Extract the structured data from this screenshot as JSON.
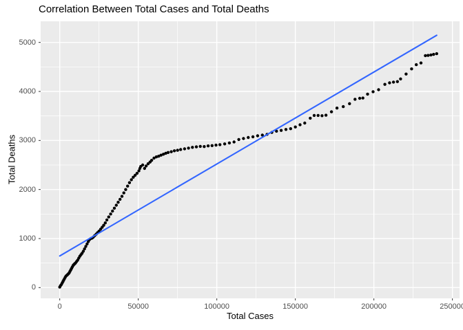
{
  "chart_data": {
    "type": "scatter",
    "title": "Correlation Between Total Cases and Total Deaths",
    "xlabel": "Total Cases",
    "ylabel": "Total Deaths",
    "xlim": [
      -12150,
      254550
    ],
    "ylim": [
      -220,
      5430
    ],
    "grid": true,
    "legend": "none",
    "x_tick_values": [
      0,
      50000,
      100000,
      150000,
      200000,
      250000
    ],
    "x_tick_labels": [
      "0",
      "50000",
      "100000",
      "150000",
      "200000",
      "250000"
    ],
    "y_tick_values": [
      0,
      1000,
      2000,
      3000,
      4000,
      5000
    ],
    "y_tick_labels": [
      "0",
      "1000",
      "2000",
      "3000",
      "4000",
      "5000"
    ],
    "x_minor_values": [
      25000,
      75000,
      125000,
      175000,
      225000
    ],
    "y_minor_values": [
      500,
      1500,
      2500,
      3500,
      4500
    ],
    "colors": {
      "panel_bg": "#EBEBEB",
      "grid": "#FFFFFF",
      "point": "#000000",
      "trend": "#3366FF",
      "tick_mark": "#333333",
      "tick_text": "#4D4D4D",
      "title_text": "#000000"
    },
    "trend_line": {
      "x": [
        0,
        240000
      ],
      "y": [
        645,
        5145
      ]
    },
    "points": [
      [
        0,
        10
      ],
      [
        500,
        40
      ],
      [
        1000,
        60
      ],
      [
        1500,
        90
      ],
      [
        2000,
        120
      ],
      [
        2500,
        150
      ],
      [
        3000,
        180
      ],
      [
        3500,
        210
      ],
      [
        4000,
        235
      ],
      [
        4500,
        250
      ],
      [
        5000,
        265
      ],
      [
        5500,
        280
      ],
      [
        6000,
        300
      ],
      [
        6500,
        330
      ],
      [
        7000,
        360
      ],
      [
        7500,
        390
      ],
      [
        8000,
        420
      ],
      [
        8500,
        450
      ],
      [
        9000,
        470
      ],
      [
        9500,
        485
      ],
      [
        10000,
        500
      ],
      [
        10700,
        530
      ],
      [
        11400,
        560
      ],
      [
        12100,
        600
      ],
      [
        12800,
        640
      ],
      [
        13500,
        670
      ],
      [
        14200,
        700
      ],
      [
        15000,
        740
      ],
      [
        15800,
        790
      ],
      [
        16600,
        840
      ],
      [
        17400,
        890
      ],
      [
        18200,
        940
      ],
      [
        19000,
        980
      ],
      [
        19800,
        1000
      ],
      [
        20600,
        1010
      ],
      [
        21400,
        1030
      ],
      [
        22300,
        1060
      ],
      [
        23200,
        1090
      ],
      [
        24100,
        1120
      ],
      [
        25000,
        1150
      ],
      [
        26000,
        1190
      ],
      [
        27000,
        1230
      ],
      [
        28000,
        1270
      ],
      [
        29000,
        1320
      ],
      [
        30000,
        1380
      ],
      [
        31200,
        1440
      ],
      [
        32400,
        1500
      ],
      [
        33600,
        1560
      ],
      [
        34800,
        1620
      ],
      [
        36000,
        1680
      ],
      [
        37200,
        1740
      ],
      [
        38400,
        1800
      ],
      [
        39600,
        1860
      ],
      [
        40800,
        1930
      ],
      [
        42000,
        2000
      ],
      [
        43200,
        2070
      ],
      [
        44400,
        2140
      ],
      [
        45600,
        2200
      ],
      [
        46800,
        2250
      ],
      [
        48000,
        2290
      ],
      [
        49200,
        2330
      ],
      [
        50400,
        2380
      ],
      [
        51000,
        2430
      ],
      [
        51600,
        2470
      ],
      [
        52800,
        2500
      ],
      [
        54000,
        2430
      ],
      [
        55000,
        2480
      ],
      [
        56300,
        2525
      ],
      [
        57500,
        2560
      ],
      [
        58500,
        2595
      ],
      [
        60000,
        2640
      ],
      [
        61500,
        2665
      ],
      [
        63000,
        2680
      ],
      [
        64500,
        2700
      ],
      [
        66000,
        2720
      ],
      [
        67500,
        2740
      ],
      [
        69000,
        2755
      ],
      [
        71000,
        2770
      ],
      [
        73000,
        2790
      ],
      [
        75000,
        2800
      ],
      [
        77000,
        2815
      ],
      [
        79500,
        2830
      ],
      [
        82000,
        2845
      ],
      [
        84500,
        2860
      ],
      [
        87000,
        2870
      ],
      [
        89500,
        2880
      ],
      [
        92000,
        2875
      ],
      [
        94500,
        2890
      ],
      [
        97000,
        2895
      ],
      [
        99500,
        2905
      ],
      [
        102000,
        2915
      ],
      [
        105000,
        2930
      ],
      [
        108000,
        2950
      ],
      [
        111000,
        2970
      ],
      [
        114000,
        3020
      ],
      [
        117000,
        3040
      ],
      [
        120000,
        3060
      ],
      [
        123000,
        3075
      ],
      [
        126000,
        3095
      ],
      [
        129000,
        3110
      ],
      [
        132000,
        3125
      ],
      [
        135000,
        3165
      ],
      [
        138000,
        3190
      ],
      [
        141000,
        3205
      ],
      [
        144000,
        3225
      ],
      [
        147000,
        3240
      ],
      [
        150000,
        3275
      ],
      [
        153000,
        3320
      ],
      [
        156000,
        3355
      ],
      [
        159500,
        3455
      ],
      [
        162000,
        3510
      ],
      [
        164500,
        3510
      ],
      [
        167000,
        3505
      ],
      [
        169500,
        3515
      ],
      [
        173000,
        3585
      ],
      [
        176500,
        3660
      ],
      [
        180500,
        3690
      ],
      [
        184500,
        3750
      ],
      [
        188000,
        3840
      ],
      [
        191000,
        3860
      ],
      [
        193000,
        3865
      ],
      [
        196000,
        3945
      ],
      [
        199500,
        3995
      ],
      [
        203000,
        4035
      ],
      [
        207000,
        4145
      ],
      [
        210000,
        4175
      ],
      [
        212500,
        4190
      ],
      [
        215000,
        4200
      ],
      [
        217000,
        4255
      ],
      [
        220500,
        4355
      ],
      [
        224000,
        4460
      ],
      [
        227000,
        4545
      ],
      [
        230000,
        4580
      ],
      [
        232800,
        4730
      ],
      [
        234500,
        4735
      ],
      [
        236300,
        4745
      ],
      [
        238000,
        4755
      ],
      [
        240000,
        4770
      ]
    ]
  }
}
